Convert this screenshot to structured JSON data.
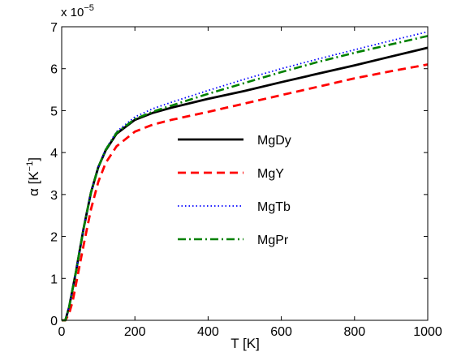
{
  "chart_data": {
    "type": "line",
    "title": "",
    "xlabel": "T [K]",
    "ylabel_main": "α [K",
    "ylabel_exp": "−1",
    "ylabel_close": "]",
    "exponent_base": "x 10",
    "exponent_power": "−5",
    "xlim": [
      0,
      1000
    ],
    "ylim": [
      0,
      7
    ],
    "xticks": [
      0,
      200,
      400,
      600,
      800,
      1000
    ],
    "yticks": [
      0,
      1,
      2,
      3,
      4,
      5,
      6,
      7
    ],
    "grid": false,
    "legend_placement": "center",
    "series": [
      {
        "name": "MgDy",
        "color": "#000000",
        "style": "solid",
        "x": [
          0,
          10,
          20,
          30,
          40,
          50,
          60,
          80,
          100,
          120,
          150,
          200,
          250,
          300,
          400,
          500,
          600,
          700,
          800,
          900,
          1000
        ],
        "y": [
          0,
          0,
          0.3,
          0.75,
          1.2,
          1.7,
          2.2,
          3.05,
          3.65,
          4.05,
          4.45,
          4.78,
          4.95,
          5.07,
          5.28,
          5.47,
          5.68,
          5.88,
          6.08,
          6.29,
          6.5
        ]
      },
      {
        "name": "MgY",
        "color": "#ff0000",
        "style": "dashed",
        "x": [
          0,
          10,
          20,
          30,
          40,
          50,
          60,
          80,
          100,
          120,
          150,
          200,
          250,
          300,
          400,
          500,
          600,
          700,
          800,
          900,
          1000
        ],
        "y": [
          0,
          0,
          0.15,
          0.45,
          0.9,
          1.35,
          1.8,
          2.65,
          3.3,
          3.75,
          4.15,
          4.5,
          4.67,
          4.78,
          4.97,
          5.17,
          5.37,
          5.57,
          5.77,
          5.94,
          6.1
        ]
      },
      {
        "name": "MgTb",
        "color": "#0000ff",
        "style": "dotted",
        "x": [
          0,
          10,
          20,
          30,
          40,
          50,
          60,
          80,
          100,
          120,
          150,
          200,
          250,
          300,
          400,
          500,
          600,
          700,
          800,
          900,
          1000
        ],
        "y": [
          0,
          0,
          0.3,
          0.75,
          1.2,
          1.7,
          2.2,
          3.05,
          3.65,
          4.08,
          4.5,
          4.85,
          5.05,
          5.2,
          5.48,
          5.75,
          6.0,
          6.23,
          6.45,
          6.67,
          6.88
        ]
      },
      {
        "name": "MgPr",
        "color": "#008000",
        "style": "dashdot",
        "x": [
          0,
          10,
          20,
          30,
          40,
          50,
          60,
          80,
          100,
          120,
          150,
          200,
          250,
          300,
          400,
          500,
          600,
          700,
          800,
          900,
          1000
        ],
        "y": [
          0,
          0,
          0.3,
          0.75,
          1.2,
          1.7,
          2.2,
          3.05,
          3.65,
          4.06,
          4.47,
          4.8,
          4.98,
          5.12,
          5.4,
          5.66,
          5.92,
          6.16,
          6.38,
          6.58,
          6.78
        ]
      }
    ]
  }
}
